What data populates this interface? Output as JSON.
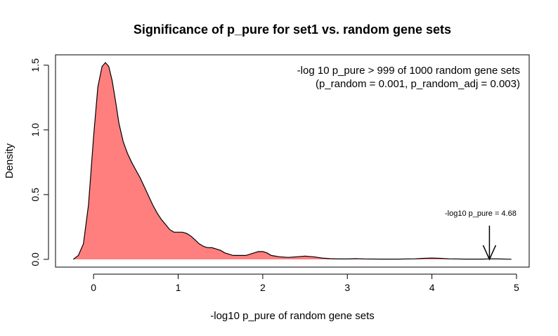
{
  "chart_data": {
    "type": "area",
    "title": "Significance of p_pure for  set1 vs. random gene sets",
    "xlabel": "-log10 p_pure of random gene sets",
    "ylabel": "Density",
    "xlim": [
      -0.45,
      5.15
    ],
    "ylim": [
      -0.06,
      1.58
    ],
    "x_ticks": [
      0,
      1,
      2,
      3,
      4,
      5
    ],
    "x_tick_labels": [
      "0",
      "1",
      "2",
      "3",
      "4",
      "5"
    ],
    "y_ticks": [
      0.0,
      0.5,
      1.0,
      1.5
    ],
    "y_tick_labels": [
      "0.0",
      "0.5",
      "1.0",
      "1.5"
    ],
    "grid": false,
    "fill_color": "#ff7f7f",
    "line_color": "#000000",
    "series": [
      {
        "x": [
          -0.24,
          -0.18,
          -0.12,
          -0.06,
          0.0,
          0.05,
          0.1,
          0.14,
          0.18,
          0.22,
          0.26,
          0.3,
          0.35,
          0.4,
          0.45,
          0.5,
          0.55,
          0.6,
          0.65,
          0.7,
          0.75,
          0.8,
          0.85,
          0.9,
          0.95,
          1.0,
          1.05,
          1.1,
          1.15,
          1.2,
          1.25,
          1.3,
          1.35,
          1.4,
          1.45,
          1.5,
          1.55,
          1.6,
          1.65,
          1.7,
          1.75,
          1.8,
          1.85,
          1.9,
          1.95,
          2.0,
          2.05,
          2.1,
          2.2,
          2.3,
          2.4,
          2.5,
          2.6,
          2.7,
          2.8,
          2.9,
          3.0,
          3.1,
          3.2,
          3.4,
          3.6,
          3.8,
          3.9,
          4.0,
          4.1,
          4.2,
          4.4,
          4.6,
          4.7,
          4.8,
          4.94
        ],
        "y": [
          0.0,
          0.03,
          0.12,
          0.42,
          0.95,
          1.33,
          1.49,
          1.52,
          1.49,
          1.38,
          1.22,
          1.05,
          0.91,
          0.82,
          0.75,
          0.69,
          0.63,
          0.56,
          0.49,
          0.42,
          0.36,
          0.31,
          0.27,
          0.23,
          0.21,
          0.21,
          0.21,
          0.2,
          0.18,
          0.15,
          0.12,
          0.1,
          0.09,
          0.09,
          0.08,
          0.07,
          0.05,
          0.04,
          0.03,
          0.03,
          0.03,
          0.03,
          0.04,
          0.05,
          0.06,
          0.06,
          0.05,
          0.03,
          0.02,
          0.015,
          0.02,
          0.025,
          0.02,
          0.01,
          0.005,
          0.003,
          0.003,
          0.005,
          0.003,
          0.002,
          0.002,
          0.004,
          0.008,
          0.01,
          0.008,
          0.004,
          0.002,
          0.002,
          0.004,
          0.003,
          0.001
        ]
      }
    ],
    "annotations": {
      "line1": "-log 10 p_pure > 999 of 1000 random gene sets",
      "line2": "(p_random = 0.001, p_random_adj = 0.003)",
      "arrow_label": "-log10 p_pure =  4.68",
      "arrow_x": 4.68
    }
  }
}
